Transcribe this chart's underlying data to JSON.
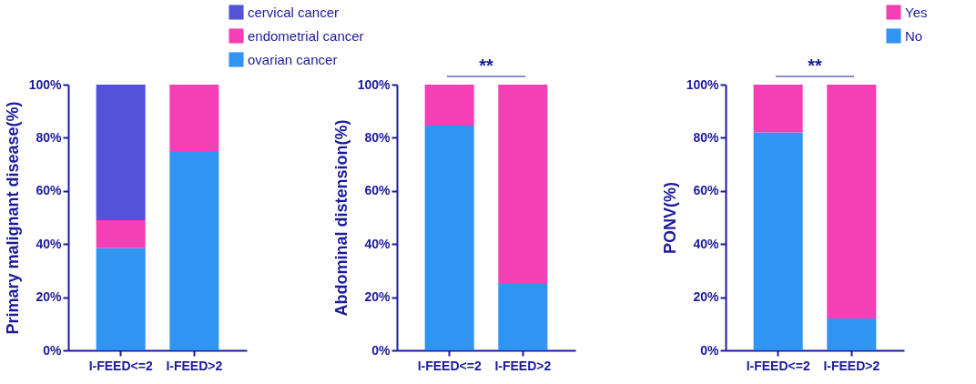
{
  "chart_data": [
    {
      "type": "bar",
      "stacked": true,
      "legend": "top right",
      "ylabel": "Primary malignant disease(%)",
      "categories": [
        "I-FEED<=2",
        "I-FEED>2"
      ],
      "ylim": [
        0,
        100
      ],
      "yticks": [
        {
          "value": 0,
          "label": "0%"
        },
        {
          "value": 20,
          "label": "20%"
        },
        {
          "value": 40,
          "label": "40%"
        },
        {
          "value": 60,
          "label": "60%"
        },
        {
          "value": 80,
          "label": "80%"
        },
        {
          "value": 100,
          "label": "100%"
        }
      ],
      "series": [
        {
          "name": "ovarian cancer",
          "color": "#2f94f2",
          "values": [
            38.5,
            75
          ]
        },
        {
          "name": "endometrial cancer",
          "color": "#f53fb4",
          "values": [
            10.5,
            25
          ]
        },
        {
          "name": "cervical cancer",
          "color": "#5353d8",
          "values": [
            51,
            0
          ]
        }
      ]
    },
    {
      "type": "bar",
      "stacked": true,
      "ylabel": "Abdominal distension(%)",
      "annotations": [
        "**"
      ],
      "categories": [
        "I-FEED<=2",
        "I-FEED>2"
      ],
      "ylim": [
        0,
        100
      ],
      "yticks": [
        {
          "value": 0,
          "label": "0%"
        },
        {
          "value": 20,
          "label": "20%"
        },
        {
          "value": 40,
          "label": "40%"
        },
        {
          "value": 60,
          "label": "60%"
        },
        {
          "value": 80,
          "label": "80%"
        },
        {
          "value": 100,
          "label": "100%"
        }
      ],
      "series": [
        {
          "color": "#2f94f2",
          "values": [
            84.6,
            25
          ]
        },
        {
          "color": "#f53fb4",
          "values": [
            15.4,
            75
          ]
        }
      ]
    },
    {
      "type": "bar",
      "stacked": true,
      "legend": "top right",
      "ylabel": "PONV(%)",
      "annotations": [
        "**"
      ],
      "categories": [
        "I-FEED<=2",
        "I-FEED>2"
      ],
      "ylim": [
        0,
        100
      ],
      "yticks": [
        {
          "value": 0,
          "label": "0%"
        },
        {
          "value": 20,
          "label": "20%"
        },
        {
          "value": 40,
          "label": "40%"
        },
        {
          "value": 60,
          "label": "60%"
        },
        {
          "value": 80,
          "label": "80%"
        },
        {
          "value": 100,
          "label": "100%"
        }
      ],
      "series": [
        {
          "name": "No",
          "color": "#2f94f2",
          "values": [
            82,
            12
          ]
        },
        {
          "name": "Yes",
          "color": "#f53fb4",
          "values": [
            18,
            88
          ]
        }
      ]
    }
  ]
}
